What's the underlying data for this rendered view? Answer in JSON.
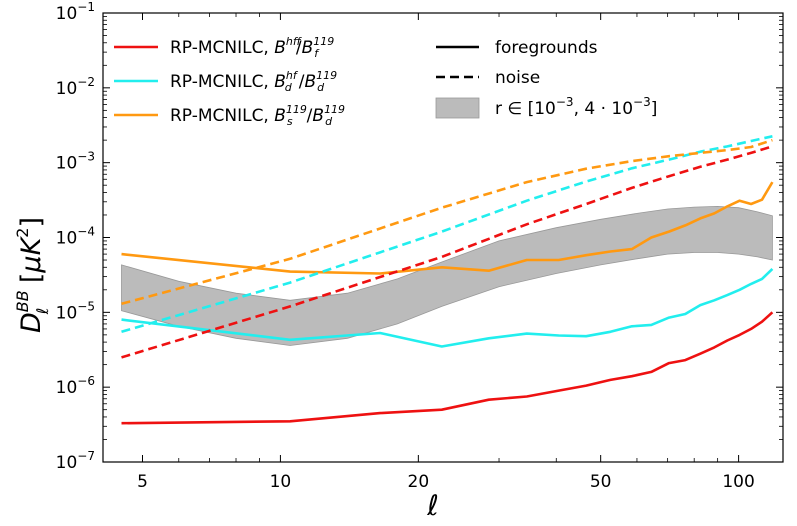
{
  "chart_data": {
    "type": "line",
    "xscale": "log",
    "yscale": "log",
    "xlim": [
      4.1,
      125
    ],
    "ylim": [
      1e-07,
      0.1
    ],
    "xlabel": "ℓ",
    "ylabel": "D_ℓ^{BB} [μK²]",
    "x_ticks": [
      5,
      10,
      20,
      50,
      100
    ],
    "x_tick_labels": [
      "5",
      "10",
      "20",
      "50",
      "100"
    ],
    "y_ticks": [
      -7,
      -6,
      -5,
      -4,
      -3,
      -2,
      -1
    ],
    "series": [
      {
        "name": "RP-MCNILC, B_f^hf/B_f^119 foregrounds",
        "color": "#ee1111",
        "style": "solid",
        "x": [
          4.5,
          10.5,
          16.5,
          22.5,
          28.5,
          34.5,
          40.5,
          46.5,
          52.5,
          58.5,
          64.5,
          70.5,
          76.5,
          82.5,
          88.5,
          94.5,
          100.5,
          106.5,
          112.5,
          118.5
        ],
        "y": [
          3.3e-07,
          3.5e-07,
          4.5e-07,
          5e-07,
          6.8e-07,
          7.5e-07,
          9e-07,
          1.05e-06,
          1.25e-06,
          1.4e-06,
          1.6e-06,
          2.1e-06,
          2.3e-06,
          2.8e-06,
          3.4e-06,
          4.2e-06,
          5e-06,
          6e-06,
          7.5e-06,
          1e-05
        ]
      },
      {
        "name": "RP-MCNILC, B_d^hf/B_d^119 foregrounds",
        "color": "#22eeee",
        "style": "solid",
        "x": [
          4.5,
          10.5,
          16.5,
          22.5,
          28.5,
          34.5,
          40.5,
          46.5,
          52.5,
          58.5,
          64.5,
          70.5,
          76.5,
          82.5,
          88.5,
          94.5,
          100.5,
          106.5,
          112.5,
          118.5
        ],
        "y": [
          8e-06,
          4.3e-06,
          5.3e-06,
          3.5e-06,
          4.5e-06,
          5.2e-06,
          4.9e-06,
          4.8e-06,
          5.5e-06,
          6.5e-06,
          6.8e-06,
          8.5e-06,
          9.5e-06,
          1.25e-05,
          1.45e-05,
          1.7e-05,
          2e-05,
          2.4e-05,
          2.8e-05,
          3.8e-05
        ]
      },
      {
        "name": "RP-MCNILC, B_s^119/B_d^119 foregrounds",
        "color": "#ff9911",
        "style": "solid",
        "x": [
          4.5,
          10.5,
          16.5,
          22.5,
          28.5,
          34.5,
          40.5,
          46.5,
          52.5,
          58.5,
          64.5,
          70.5,
          76.5,
          82.5,
          88.5,
          94.5,
          100.5,
          106.5,
          112.5,
          118.5
        ],
        "y": [
          6e-05,
          3.5e-05,
          3.3e-05,
          4e-05,
          3.6e-05,
          5e-05,
          5e-05,
          5.8e-05,
          6.5e-05,
          7e-05,
          0.0001,
          0.00012,
          0.000145,
          0.00018,
          0.00021,
          0.00026,
          0.00031,
          0.00028,
          0.00032,
          0.00055
        ]
      },
      {
        "name": "RP-MCNILC, B_f^hf/B_f^119 noise",
        "color": "#ee1111",
        "style": "dashed",
        "x": [
          4.5,
          10.5,
          22.5,
          34.5,
          46.5,
          58.5,
          70.5,
          82.5,
          94.5,
          106.5,
          118.5
        ],
        "y": [
          2.5e-06,
          1.2e-05,
          5.5e-05,
          0.00015,
          0.00028,
          0.00046,
          0.00066,
          0.00088,
          0.0011,
          0.00135,
          0.00165
        ]
      },
      {
        "name": "RP-MCNILC, B_d^hf/B_d^119 noise",
        "color": "#22eeee",
        "style": "dashed",
        "x": [
          4.5,
          10.5,
          22.5,
          34.5,
          46.5,
          58.5,
          70.5,
          82.5,
          94.5,
          106.5,
          118.5
        ],
        "y": [
          5.5e-06,
          2.5e-05,
          0.00012,
          0.00031,
          0.00056,
          0.00084,
          0.0011,
          0.0014,
          0.00165,
          0.00195,
          0.00225
        ]
      },
      {
        "name": "RP-MCNILC, B_s^119/B_d^119 noise",
        "color": "#ff9911",
        "style": "dashed",
        "x": [
          4.5,
          10.5,
          22.5,
          34.5,
          46.5,
          58.5,
          70.5,
          82.5,
          94.5,
          106.5,
          118.5
        ],
        "y": [
          1.3e-05,
          5.2e-05,
          0.00025,
          0.00055,
          0.00083,
          0.00105,
          0.00122,
          0.00135,
          0.00147,
          0.00162,
          0.002
        ]
      }
    ],
    "band": {
      "name": "r ∈ [10⁻³, 4·10⁻³]",
      "color": "#bbbbbb",
      "x": [
        4.5,
        6,
        8,
        10.5,
        14,
        18,
        22.5,
        30,
        40,
        50,
        60,
        70,
        80,
        90,
        100,
        110,
        118.5
      ],
      "lower": [
        1.05e-05,
        6.5e-06,
        4.5e-06,
        3.6e-06,
        4.5e-06,
        7e-06,
        1.2e-05,
        2.2e-05,
        3.3e-05,
        4.3e-05,
        5.2e-05,
        6e-05,
        6.3e-05,
        6.3e-05,
        6e-05,
        5.5e-05,
        5e-05
      ],
      "upper": [
        4.3e-05,
        2.6e-05,
        1.8e-05,
        1.45e-05,
        1.8e-05,
        2.8e-05,
        4.7e-05,
        9e-05,
        0.000135,
        0.000175,
        0.00021,
        0.00024,
        0.000255,
        0.00026,
        0.00025,
        0.00022,
        0.000195
      ]
    },
    "legend": {
      "entries": [
        {
          "label_prefix": "RP-MCNILC, ",
          "ratio_base_num": "B",
          "ratio_sup_num": "hf",
          "ratio_sub_num": "f",
          "ratio_base_den": "B",
          "ratio_sup_den": "119",
          "ratio_sub_den": "f",
          "color": "#ee1111"
        },
        {
          "label_prefix": "RP-MCNILC, ",
          "ratio_base_num": "B",
          "ratio_sup_num": "hf",
          "ratio_sub_num": "d",
          "ratio_base_den": "B",
          "ratio_sup_den": "119",
          "ratio_sub_den": "d",
          "color": "#22eeee"
        },
        {
          "label_prefix": "RP-MCNILC, ",
          "ratio_base_num": "B",
          "ratio_sup_num": "119",
          "ratio_sub_num": "s",
          "ratio_base_den": "B",
          "ratio_sup_den": "119",
          "ratio_sub_den": "d",
          "color": "#ff9911"
        }
      ],
      "style_entries": {
        "solid_label": "foregrounds",
        "dashed_label": "noise",
        "band_label_prefix": "r ∈ [10",
        "band_exp1": "−3",
        "band_mid": ", 4 · 10",
        "band_exp2": "−3",
        "band_suffix": "]"
      }
    },
    "y_label_parts": {
      "base": "D",
      "sup": "BB",
      "sub": "ℓ",
      "unit_open": " [",
      "unit_mu": "μK",
      "unit_exp": "2",
      "unit_close": "]"
    },
    "x_label_text": "ℓ",
    "y_tick_base": "10",
    "y_tick_exps": [
      "−7",
      "−6",
      "−5",
      "−4",
      "−3",
      "−2",
      "−1"
    ]
  }
}
